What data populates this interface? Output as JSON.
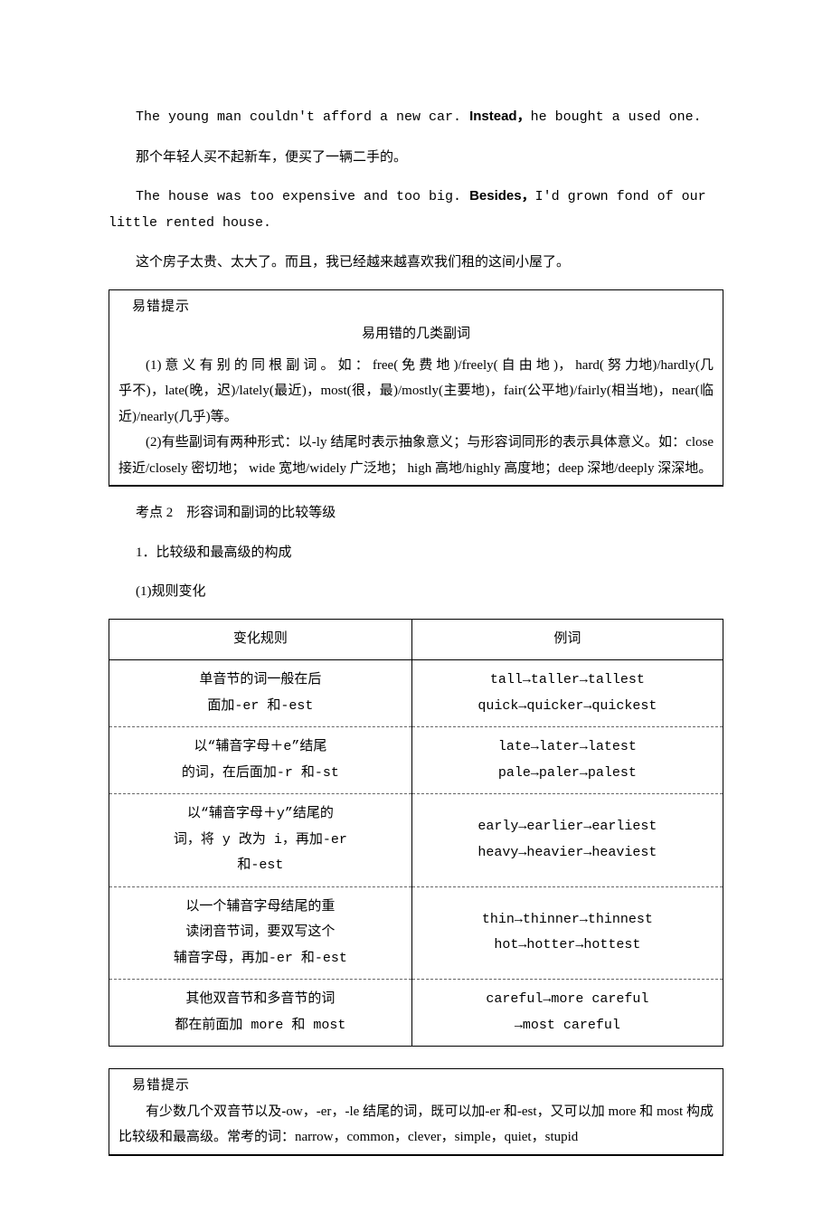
{
  "s1": {
    "p1": "The young man couldn't afford a new car. ",
    "b1": "Instead，",
    "p2": "he bought a used one.",
    "p3": "那个年轻人买不起新车，便买了一辆二手的。",
    "p4": "The house was too expensive and too big. ",
    "b2": "Besides，",
    "p5": "I'd grown fond of our little rented house.",
    "p6": "这个房子太贵、太大了。而且，我已经越来越喜欢我们租的这间小屋了。"
  },
  "box1": {
    "badge": "易错提示",
    "title": "易用错的几类副词",
    "p1": "(1) 意 义 有 别 的 同 根 副 词 。 如 ： free( 免 费 地 )/freely( 自 由 地 )，  hard( 努 力地)/hardly(几乎不)，late(晚，迟)/lately(最近)，most(很，最)/mostly(主要地)，fair(公平地)/fairly(相当地)，near(临近)/nearly(几乎)等。",
    "p2": "(2)有些副词有两种形式：以-ly 结尾时表示抽象意义；与形容词同形的表示具体意义。如：close 接近/closely 密切地；  wide 宽地/widely 广泛地；  high 高地/highly 高度地；deep 深地/deeply 深深地。"
  },
  "s2": {
    "h1": "考点 2　形容词和副词的比较等级",
    "h2": "1．比较级和最高级的构成",
    "h3": "(1)规则变化"
  },
  "table": {
    "header": [
      "变化规则",
      "例词"
    ],
    "rows": [
      [
        "单音节的词一般在后<br>面加-er 和-est",
        "tall→taller→tallest<br>quick→quicker→quickest"
      ],
      [
        "以“辅音字母＋e”结尾<br>的词，在后面加-r 和-st",
        "late→later→latest<br>pale→paler→palest"
      ],
      [
        "以“辅音字母＋y”结尾的<br>词，将 y 改为 i，再加-er<br>和-est",
        "early→earlier→earliest<br>heavy→heavier→heaviest"
      ],
      [
        "以一个辅音字母结尾的重<br>读闭音节词，要双写这个<br>辅音字母，再加-er 和-est",
        "thin→thinner→thinnest<br>hot→hotter→hottest"
      ],
      [
        "其他双音节和多音节的词<br>都在前面加 more 和 most",
        "careful→more careful<br>→most careful"
      ]
    ]
  },
  "box2": {
    "badge": "易错提示",
    "p1": "有少数几个双音节以及-ow，-er，-le 结尾的词，既可以加-er 和-est，又可以加 more 和 most 构成比较级和最高级。常考的词：narrow，common，clever，simple，quiet，stupid"
  }
}
